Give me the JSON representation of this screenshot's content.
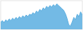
{
  "chart_data": {
    "type": "area",
    "values": [
      18,
      22,
      17,
      24,
      20,
      26,
      22,
      28,
      24,
      30,
      26,
      32,
      28,
      34,
      30,
      36,
      32,
      38,
      36,
      42,
      38,
      46,
      42,
      50,
      46,
      54,
      50,
      58,
      54,
      60,
      56,
      62,
      58,
      64,
      60,
      56,
      52,
      48,
      40,
      28,
      12,
      8,
      18,
      30,
      24,
      38,
      32,
      44,
      36
    ],
    "color": "#5baee0",
    "xlim": [
      0,
      48
    ],
    "ylim": [
      0,
      72
    ],
    "tick_labels": false
  }
}
